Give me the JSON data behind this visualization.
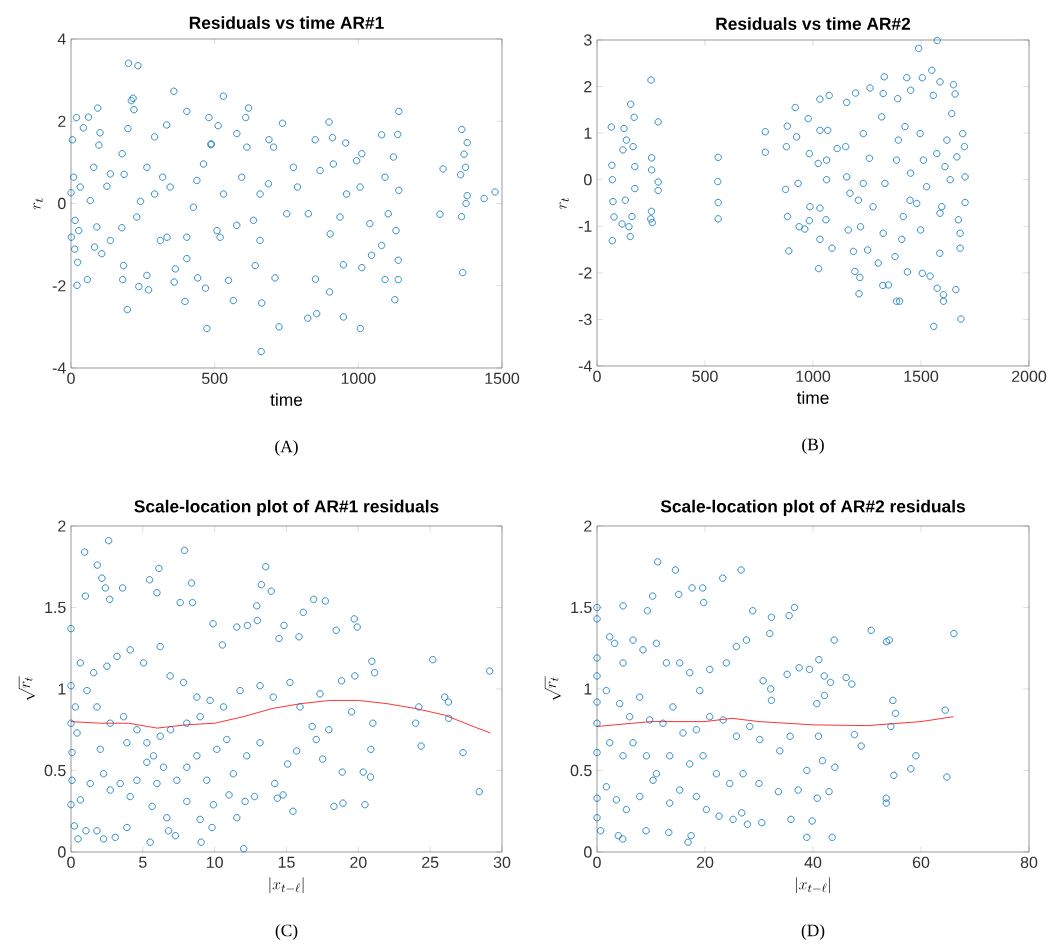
{
  "chart_data": [
    {
      "type": "scatter",
      "title": "Residuals vs time AR#1",
      "xlabel": "time",
      "ylabel": "r_t",
      "xlim": [
        0,
        1500
      ],
      "ylim": [
        -4,
        4
      ],
      "xticks": [
        0,
        500,
        1000,
        1500
      ],
      "yticks": [
        -4,
        -2,
        0,
        2,
        4
      ],
      "marker": "circle",
      "annotations": [
        "(A)"
      ],
      "series": [
        {
          "color": "#0072bd",
          "x": [
            200,
            233,
            358,
            530,
            210,
            216,
            219,
            403,
            618,
            1141,
            93,
            19,
            61,
            480,
            608,
            898,
            736,
            333,
            512,
            1360,
            1137,
            1081,
            101,
            198,
            43,
            5,
            910,
            956,
            1379,
            850,
            689,
            291,
            577,
            487,
            97,
            1012,
            1368,
            1295,
            1373,
            1356,
            1476,
            1438,
            1284,
            1359,
            1363,
            1375,
            1379,
            0,
            9,
            32,
            14,
            27,
            23,
            21,
            57,
            13,
            82,
            107,
            90,
            67,
            137,
            125,
            178,
            185,
            177,
            183,
            180,
            196,
            236,
            270,
            264,
            229,
            242,
            291,
            311,
            319,
            345,
            363,
            359,
            397,
            403,
            426,
            438,
            473,
            468,
            441,
            488,
            508,
            531,
            548,
            565,
            577,
            594,
            635,
            664,
            662,
            641,
            658,
            687,
            724,
            710,
            751,
            788,
            824,
            855,
            851,
            826,
            867,
            900,
            902,
            948,
            948,
            936,
            959,
            1007,
            1012,
            994,
            1040,
            1046,
            1081,
            1093,
            1104,
            1122,
            1127,
            1139,
            1139,
            1141,
            1131,
            1093,
            774,
            705,
            612,
            461,
            403,
            334,
            264,
            137,
            79,
            1,
            658,
            1006,
            913,
            519
          ],
          "values": [
            3.41,
            3.35,
            2.73,
            2.61,
            2.5,
            2.56,
            2.28,
            2.24,
            2.32,
            2.24,
            2.32,
            2.09,
            2.1,
            2.09,
            2.09,
            1.98,
            1.95,
            1.91,
            1.89,
            1.8,
            1.68,
            1.67,
            1.72,
            1.82,
            1.84,
            1.55,
            1.6,
            1.47,
            1.48,
            1.55,
            1.55,
            1.62,
            1.7,
            1.43,
            1.42,
            1.21,
            1.2,
            0.84,
            0.88,
            0.7,
            0.28,
            0.12,
            -0.26,
            -0.32,
            -1.68,
            0.0,
            0.19,
            0.26,
            0.64,
            0.4,
            -0.41,
            -0.66,
            -1.43,
            -1.99,
            -1.85,
            -1.11,
            -1.06,
            -1.22,
            -0.57,
            0.07,
            0.72,
            0.42,
            1.21,
            0.71,
            -0.59,
            -1.51,
            -1.85,
            -2.58,
            -2.02,
            -2.1,
            -1.75,
            -0.33,
            0.05,
            0.23,
            -0.9,
            0.64,
            0.4,
            -1.59,
            -1.91,
            -2.38,
            -1.34,
            -0.09,
            0.56,
            -3.04,
            -2.06,
            -1.81,
            1.45,
            -0.66,
            0.23,
            -1.87,
            -2.36,
            -0.53,
            0.64,
            -0.41,
            -2.42,
            -3.6,
            -1.51,
            0.23,
            0.48,
            -3.0,
            -1.81,
            -0.25,
            0.4,
            -2.79,
            -2.68,
            -1.84,
            -0.25,
            0.8,
            -2.15,
            -0.74,
            -2.76,
            -1.49,
            -0.33,
            0.23,
            -3.04,
            -1.56,
            1.04,
            -0.49,
            -1.26,
            -1.02,
            -1.85,
            -0.25,
            1.13,
            -2.34,
            -1.85,
            -1.38,
            0.32,
            -0.66,
            0.64,
            0.88,
            1.37,
            1.37,
            0.96,
            -0.82,
            -0.82,
            0.88,
            -0.9,
            0.88,
            -0.82,
            -0.9,
            0.4,
            0.96,
            -0.82
          ]
        }
      ]
    },
    {
      "type": "scatter",
      "title": "Residuals vs time AR#2",
      "xlabel": "time",
      "ylabel": "r_t",
      "xlim": [
        0,
        2000
      ],
      "ylim": [
        -4,
        3
      ],
      "xticks": [
        0,
        500,
        1000,
        1500,
        2000
      ],
      "yticks": [
        -4,
        -3,
        -2,
        -1,
        0,
        1,
        2,
        3
      ],
      "marker": "circle",
      "annotations": [
        "(B)"
      ],
      "series": [
        {
          "color": "#0072bd",
          "x": [
            66,
            69,
            71,
            71,
            79,
            74,
            116,
            125,
            156,
            172,
            120,
            136,
            131,
            148,
            154,
            162,
            175,
            175,
            167,
            250,
            283,
            253,
            253,
            283,
            283,
            252,
            256,
            249,
            561,
            559,
            561,
            561,
            779,
            779,
            881,
            888,
            877,
            873,
            882,
            918,
            924,
            931,
            936,
            962,
            978,
            983,
            986,
            983,
            1026,
            1032,
            1032,
            1032,
            1024,
            1032,
            1075,
            1068,
            1063,
            1063,
            1060,
            1088,
            1112,
            1156,
            1163,
            1151,
            1156,
            1187,
            1197,
            1213,
            1194,
            1217,
            1220,
            1210,
            1233,
            1253,
            1264,
            1261,
            1233,
            1302,
            1323,
            1330,
            1325,
            1318,
            1333,
            1325,
            1349,
            1380,
            1387,
            1401,
            1392,
            1395,
            1411,
            1418,
            1437,
            1434,
            1426,
            1452,
            1452,
            1480,
            1489,
            1496,
            1506,
            1498,
            1506,
            1542,
            1550,
            1559,
            1575,
            1588,
            1557,
            1573,
            1575,
            1587,
            1604,
            1604,
            1596,
            1611,
            1635,
            1650,
            1658,
            1642,
            1661,
            1685,
            1681,
            1681,
            1693,
            1701,
            1704,
            1704,
            1673,
            1666,
            1620,
            1526,
            1588,
            1449,
            1387,
            1278,
            1171,
            1511
          ],
          "values": [
            1.13,
            0.31,
            0.0,
            -1.31,
            -0.8,
            -0.47,
            -0.95,
            1.1,
            1.62,
            1.34,
            0.64,
            0.85,
            -0.44,
            -1.01,
            -1.22,
            -0.79,
            0.28,
            -0.19,
            0.71,
            2.14,
            1.24,
            0.47,
            0.21,
            -0.05,
            -0.23,
            -0.68,
            -0.92,
            -0.84,
            0.48,
            -0.04,
            -0.49,
            -0.84,
            1.03,
            0.59,
            1.15,
            -1.53,
            0.71,
            -0.21,
            -0.79,
            1.55,
            0.92,
            -0.08,
            -1.01,
            -1.06,
            1.31,
            0.56,
            -0.58,
            -0.88,
            -1.91,
            1.73,
            1.06,
            -1.28,
            0.35,
            -0.61,
            1.81,
            1.06,
            0.42,
            0.0,
            -0.86,
            -1.47,
            0.67,
            1.66,
            -1.08,
            0.71,
            0.06,
            -1.54,
            1.86,
            -2.45,
            -1.97,
            -2.1,
            -1.01,
            -0.44,
            0.99,
            -1.51,
            1.97,
            0.46,
            -0.08,
            -1.79,
            -2.27,
            2.21,
            1.85,
            1.35,
            -0.08,
            -1.15,
            -2.26,
            -1.65,
            -2.61,
            -2.61,
            1.74,
            0.85,
            -1.28,
            -0.79,
            -1.98,
            2.19,
            1.14,
            1.92,
            0.14,
            -0.51,
            2.82,
            0.99,
            2.19,
            -1.08,
            -2.01,
            -2.07,
            2.35,
            -3.15,
            2.99,
            2.1,
            1.81,
            0.56,
            -2.33,
            -1.58,
            -2.61,
            -2.47,
            -0.58,
            0.28,
            0.0,
            2.04,
            1.84,
            1.42,
            -2.36,
            -2.99,
            -1.47,
            -1.15,
            0.99,
            0.71,
            0.06,
            -0.49,
            -0.86,
            0.49,
            0.85,
            -0.15,
            -0.72,
            -0.44,
            0.42,
            -0.58,
            -0.29,
            0.42
          ]
        }
      ]
    },
    {
      "type": "scatter",
      "title": "Scale-location plot of AR#1 residuals",
      "xlabel": "|x_{t-\\ell}|",
      "ylabel": "\\sqrt{r_t}",
      "xlim": [
        0,
        30
      ],
      "ylim": [
        0,
        2
      ],
      "xticks": [
        0,
        5,
        10,
        15,
        20,
        25,
        30
      ],
      "yticks": [
        0,
        0.5,
        1,
        1.5,
        2
      ],
      "marker": "circle",
      "annotations": [
        "(C)"
      ],
      "series": [
        {
          "color": "#0072bd",
          "x": [
            2.62,
            0.95,
            1.83,
            2.15,
            2.39,
            2.69,
            3.59,
            1.0,
            7.9,
            6.12,
            5.47,
            5.98,
            8.39,
            8.46,
            7.6,
            13.55,
            13.25,
            13.94,
            12.93,
            16.17,
            16.89,
            17.7,
            19.71,
            19.92,
            18.46,
            25.18,
            29.14,
            20.94,
            21.13,
            19.76,
            18.83,
            26.01,
            26.27,
            26.29,
            24.21,
            23.99,
            24.37,
            27.29,
            28.42,
            21.01,
            20.87,
            20.34,
            20.85,
            20.46,
            18.93,
            18.88,
            18.3,
            19.53,
            17.52,
            17.07,
            17.95,
            16.79,
            15.45,
            15.08,
            14.76,
            14.36,
            14.18,
            15.71,
            15.94,
            15.24,
            17.33,
            15.87,
            14.83,
            14.48,
            12.97,
            12.28,
            11.54,
            10.54,
            9.89,
            12.02,
            9.06,
            5.51,
            0.49,
            2.27,
            11.54,
            9.82,
            9.91,
            12.12,
            12.77,
            11.0,
            8.99,
            8.06,
            6.67,
            6.79,
            7.27,
            5.65,
            3.89,
            3.08,
            1.81,
            1.04,
            0.23,
            0,
            0,
            0,
            0,
            0.07,
            0.07,
            0.65,
            1.34,
            2.27,
            2.73,
            3.43,
            4.12,
            4.59,
            5.28,
            5.98,
            6.44,
            7.37,
            8.06,
            8.76,
            9.45,
            10.15,
            10.84,
            11.3,
            12.23,
            13.16,
            1.11,
            1.81,
            2.73,
            3.66,
            4.59,
            5.28,
            6.21,
            6.93,
            8.06,
            8.99,
            0.65,
            1.58,
            2.5,
            3.2,
            4.12,
            5.05,
            6.21,
            6.9,
            7.83,
            8.76,
            9.68,
            10.61,
            11.77,
            13.16,
            14.08,
            2.04,
            3.89,
            5.74,
            0.42,
            0.3
          ],
          "values": [
            1.91,
            1.84,
            1.76,
            1.68,
            1.62,
            1.55,
            1.62,
            1.57,
            1.85,
            1.74,
            1.67,
            1.59,
            1.65,
            1.53,
            1.53,
            1.75,
            1.64,
            1.6,
            1.51,
            1.47,
            1.55,
            1.54,
            1.43,
            1.38,
            1.36,
            1.18,
            1.11,
            1.17,
            1.1,
            1.08,
            1.05,
            0.95,
            0.92,
            0.82,
            0.89,
            0.79,
            0.65,
            0.61,
            0.37,
            0.79,
            0.63,
            0.49,
            0.46,
            0.29,
            0.3,
            0.49,
            0.28,
            0.86,
            0.57,
            0.69,
            0.75,
            0.77,
            0.25,
            0.54,
            0.35,
            0.33,
            0.42,
            0.62,
            0.89,
            1.04,
            0.97,
            1.32,
            1.39,
            1.31,
            1.42,
            1.39,
            1.38,
            1.27,
            1.4,
            0.02,
            0.06,
            0.06,
            0.08,
            0.08,
            0.21,
            0.15,
            0.29,
            0.31,
            0.34,
            0.35,
            0.2,
            0.31,
            0.21,
            0.13,
            0.1,
            0.28,
            0.15,
            0.09,
            0.13,
            0.13,
            0.16,
            0.29,
            0.79,
            1.02,
            1.37,
            0.61,
            0.44,
            0.32,
            0.42,
            0.48,
            0.38,
            0.42,
            0.34,
            0.44,
            0.55,
            0.42,
            0.52,
            0.44,
            0.52,
            0.59,
            0.44,
            0.63,
            0.69,
            0.48,
            0.59,
            0.67,
            0.99,
            0.89,
            0.79,
            0.83,
            0.75,
            0.67,
            0.71,
            0.75,
            0.79,
            0.83,
            1.16,
            1.1,
            1.14,
            1.2,
            1.24,
            1.16,
            1.26,
            1.08,
            1.04,
            0.95,
            0.93,
            0.89,
            0.99,
            1.02,
            0.95,
            0.63,
            0.67,
            0.59,
            0.73,
            0.89
          ]
        },
        {
          "type": "line",
          "marker": "none",
          "color": "#ff0000",
          "x": [
            0,
            2,
            4,
            6,
            8,
            10,
            12,
            14,
            16,
            18,
            20,
            22,
            24,
            26,
            28,
            29.2
          ],
          "values": [
            0.8,
            0.79,
            0.79,
            0.76,
            0.78,
            0.79,
            0.83,
            0.88,
            0.91,
            0.93,
            0.93,
            0.91,
            0.88,
            0.84,
            0.77,
            0.73
          ]
        }
      ]
    },
    {
      "type": "scatter",
      "title": "Scale-location plot of AR#2 residuals",
      "xlabel": "|x_{t-\\ell}|",
      "ylabel": "\\sqrt{r_t}",
      "xlim": [
        0,
        80
      ],
      "ylim": [
        0,
        2
      ],
      "xticks": [
        0,
        20,
        40,
        60,
        80
      ],
      "yticks": [
        0,
        0.5,
        1,
        1.5,
        2
      ],
      "marker": "circle",
      "annotations": [
        "(D)"
      ],
      "series": [
        {
          "color": "#0072bd",
          "x": [
            11.24,
            14.52,
            26.68,
            23.29,
            17.6,
            19.58,
            10.31,
            15.13,
            19.76,
            0,
            4.82,
            36.57,
            28.84,
            32.3,
            35.58,
            0,
            9.33,
            50.77,
            66.09,
            53.61,
            54.11,
            43.92,
            31.99,
            41.08,
            37.43,
            46.14,
            47.19,
            43.24,
            54.79,
            55.28,
            64.48,
            54.42,
            47.68,
            48.92,
            59.05,
            58.12,
            54.97,
            64.79,
            53.55,
            53.55,
            42.97,
            40.77,
            44.04,
            41.75,
            38.85,
            38.85,
            43.55,
            39.84,
            35.92,
            37.24,
            33.6,
            33.85,
            35.76,
            41.01,
            40.7,
            42.12,
            39.35,
            42.07,
            35.21,
            30.76,
            32.18,
            32.3,
            30.51,
            27.85,
            26.81,
            25.2,
            22.61,
            16.86,
            13.28,
            17.42,
            9.08,
            4.76,
            3.95,
            0.68,
            0,
            0,
            0,
            0,
            0,
            0,
            0,
            2.35,
            3.27,
            4.82,
            6.67,
            8.52,
            11.0,
            12.85,
            15.32,
            17.17,
            19.02,
            20.88,
            23.96,
            25.81,
            27.67,
            1.73,
            4.2,
            6.05,
            7.91,
            9.76,
            12.23,
            14.06,
            15.93,
            18.41,
            20.88,
            23.35,
            25.81,
            28.28,
            30.13,
            2.35,
            4.82,
            6.67,
            9.15,
            11.0,
            13.47,
            15.32,
            17.17,
            19.64,
            22.11,
            24.58,
            27.05,
            30.0,
            1.73,
            3.58,
            5.44,
            7.91,
            10.38,
            13.47,
            18.41,
            20.26
          ],
          "values": [
            1.78,
            1.73,
            1.73,
            1.68,
            1.62,
            1.62,
            1.57,
            1.58,
            1.53,
            1.5,
            1.51,
            1.5,
            1.48,
            1.44,
            1.45,
            1.43,
            1.48,
            1.36,
            1.34,
            1.29,
            1.3,
            1.3,
            1.34,
            1.18,
            1.13,
            1.07,
            1.03,
            1.04,
            0.93,
            0.85,
            0.87,
            0.77,
            0.72,
            0.65,
            0.59,
            0.51,
            0.47,
            0.46,
            0.33,
            0.3,
            0.37,
            0.33,
            0.52,
            0.56,
            0.5,
            0.09,
            0.09,
            0.19,
            0.2,
            0.38,
            0.37,
            0.62,
            0.71,
            0.71,
            0.91,
            0.96,
            1.12,
            1.08,
            1.09,
            1.05,
            1.0,
            0.93,
            0.18,
            0.17,
            0.24,
            0.2,
            0.22,
            0.06,
            0.12,
            0.1,
            0.13,
            0.08,
            0.1,
            0.13,
            0.21,
            0.33,
            0.61,
            0.79,
            0.92,
            1.19,
            1.08,
            1.32,
            1.28,
            1.16,
            1.3,
            1.24,
            1.28,
            1.16,
            1.16,
            1.1,
            0.99,
            1.12,
            1.16,
            1.26,
            1.3,
            0.99,
            0.91,
            0.83,
            0.95,
            0.81,
            0.79,
            0.89,
            0.73,
            0.75,
            0.83,
            0.81,
            0.71,
            0.77,
            0.69,
            0.67,
            0.59,
            0.67,
            0.59,
            0.48,
            0.59,
            0.38,
            0.54,
            0.59,
            0.48,
            0.42,
            0.48,
            0.42,
            0.4,
            0.32,
            0.26,
            0.34,
            0.44,
            0.3,
            0.34,
            0.26
          ]
        },
        {
          "type": "line",
          "marker": "none",
          "color": "#ff0000",
          "x": [
            0,
            10,
            20,
            25,
            30,
            40,
            50,
            60,
            66
          ],
          "values": [
            0.77,
            0.8,
            0.8,
            0.82,
            0.8,
            0.78,
            0.775,
            0.8,
            0.83
          ]
        }
      ]
    }
  ]
}
